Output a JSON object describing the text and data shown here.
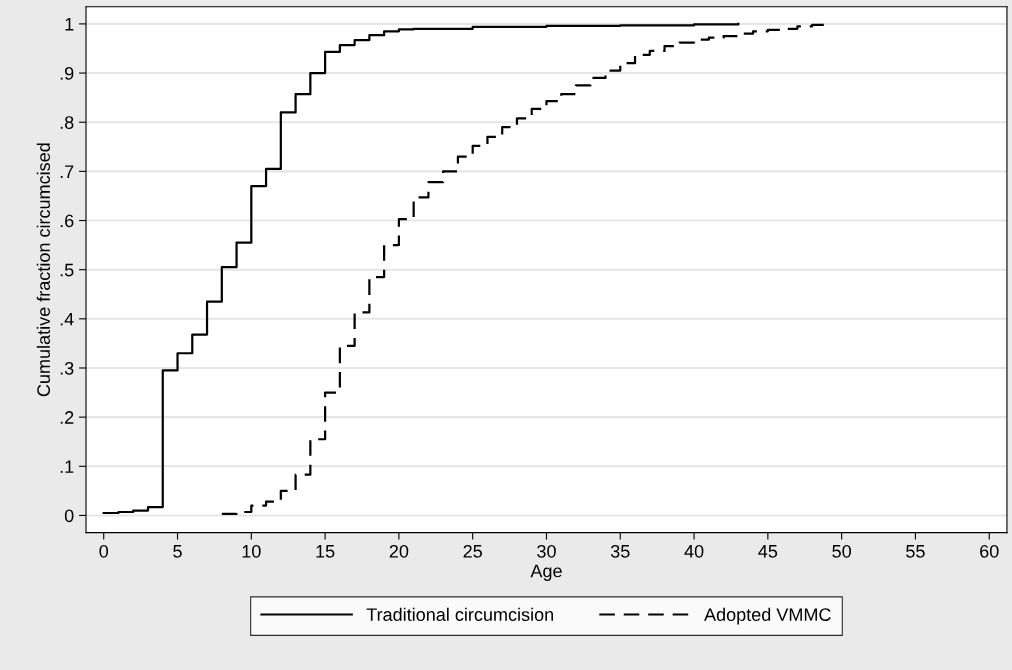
{
  "chart_data": {
    "type": "step",
    "xlabel": "Age",
    "ylabel": "Cumulative fraction circumcised",
    "xlim": [
      -1.2,
      61.2
    ],
    "xticks": [
      0,
      5,
      10,
      15,
      20,
      25,
      30,
      35,
      40,
      45,
      50,
      55,
      60
    ],
    "ylim": [
      -0.035,
      1.035
    ],
    "yticks": [
      0,
      {
        "value": 0.1,
        "label": ".1"
      },
      {
        "value": 0.2,
        "label": ".2"
      },
      {
        "value": 0.3,
        "label": ".3"
      },
      {
        "value": 0.4,
        "label": ".4"
      },
      {
        "value": 0.5,
        "label": ".5"
      },
      {
        "value": 0.6,
        "label": ".6"
      },
      {
        "value": 0.7,
        "label": ".7"
      },
      {
        "value": 0.8,
        "label": ".8"
      },
      {
        "value": 0.9,
        "label": ".9"
      },
      1
    ],
    "grid": "y",
    "legend": "bottom",
    "series": [
      {
        "name": "Traditional circumcision",
        "color": "#000000",
        "line_style": "solid",
        "x": [
          0,
          1,
          2,
          3,
          4,
          5,
          6,
          7,
          8,
          9,
          10,
          11,
          12,
          13,
          14,
          15,
          16,
          17,
          18,
          19,
          20,
          21,
          25,
          30,
          35,
          40,
          43
        ],
        "values": [
          0.005,
          0.007,
          0.01,
          0.017,
          0.295,
          0.33,
          0.368,
          0.435,
          0.505,
          0.555,
          0.67,
          0.705,
          0.82,
          0.857,
          0.9,
          0.943,
          0.957,
          0.967,
          0.977,
          0.985,
          0.989,
          0.99,
          0.994,
          0.996,
          0.997,
          0.999,
          1.0
        ]
      },
      {
        "name": "Adopted VMMC",
        "color": "#000000",
        "line_style": "dashed",
        "x": [
          8,
          9,
          10,
          11,
          12,
          13,
          14,
          15,
          16,
          17,
          18,
          19,
          20,
          21,
          22,
          23,
          24,
          25,
          26,
          27,
          28,
          29,
          30,
          31,
          32,
          33,
          34,
          35,
          36,
          37,
          38,
          39,
          40,
          41,
          42,
          43,
          44,
          45,
          46,
          47,
          48,
          49
        ],
        "values": [
          0.003,
          0.007,
          0.02,
          0.028,
          0.05,
          0.083,
          0.155,
          0.25,
          0.345,
          0.413,
          0.485,
          0.55,
          0.603,
          0.647,
          0.678,
          0.7,
          0.73,
          0.752,
          0.77,
          0.79,
          0.808,
          0.827,
          0.843,
          0.857,
          0.875,
          0.89,
          0.905,
          0.92,
          0.937,
          0.945,
          0.955,
          0.962,
          0.968,
          0.972,
          0.975,
          0.98,
          0.985,
          0.988,
          0.99,
          0.995,
          0.998,
          0.998
        ]
      }
    ]
  }
}
